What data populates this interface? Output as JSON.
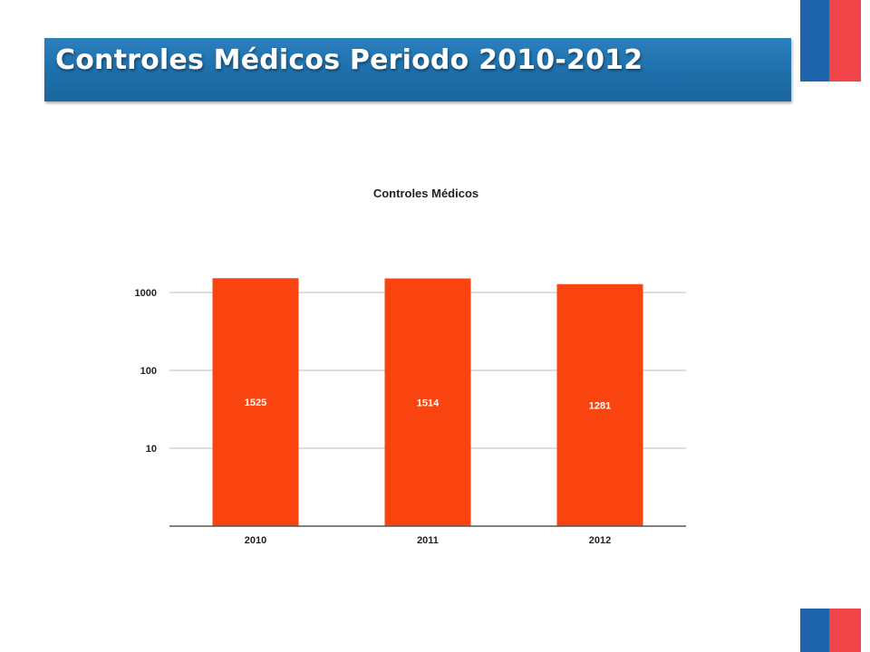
{
  "slide": {
    "title": "Controles Médicos Periodo 2010-2012"
  },
  "colors": {
    "banner": "#1e6fab",
    "bar": "#f9440f",
    "grid": "#bdbdbd",
    "flag_blue": "#1d64ad",
    "flag_red": "#ef4549"
  },
  "chart_data": {
    "type": "bar",
    "title": "Controles Médicos",
    "xlabel": "",
    "ylabel": "",
    "y_scale": "log",
    "ylim": [
      1,
      2000
    ],
    "y_ticks": [
      10,
      100,
      1000
    ],
    "y_tick_labels": [
      "10",
      "100",
      "1000"
    ],
    "grid": true,
    "legend": "none",
    "categories": [
      "2010",
      "2011",
      "2012"
    ],
    "values": [
      1525,
      1514,
      1281
    ],
    "data_labels": [
      "1525",
      "1514",
      "1281"
    ]
  }
}
